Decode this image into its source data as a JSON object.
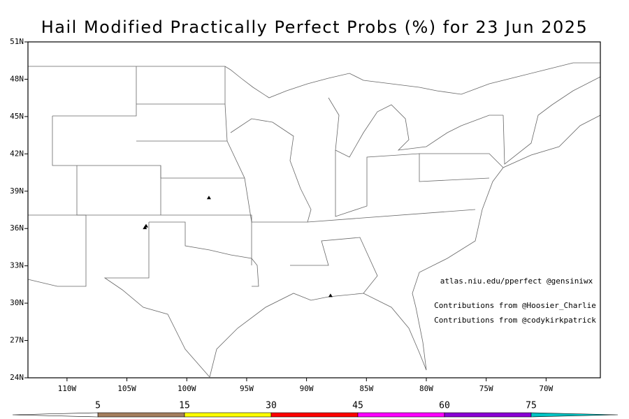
{
  "title": "Hail Modified Practically Perfect Probs (%) for 23 Jun 2025",
  "map": {
    "lonlim": [
      -113.26,
      -65.47
    ],
    "latlim": [
      24,
      51
    ],
    "xticks": [
      {
        "value": -110,
        "label": "110W"
      },
      {
        "value": -105,
        "label": "105W"
      },
      {
        "value": -100,
        "label": "100W"
      },
      {
        "value": -95,
        "label": "95W"
      },
      {
        "value": -90,
        "label": "90W"
      },
      {
        "value": -85,
        "label": "85W"
      },
      {
        "value": -80,
        "label": "80W"
      },
      {
        "value": -75,
        "label": "75W"
      },
      {
        "value": -70,
        "label": "70W"
      }
    ],
    "yticks": [
      {
        "value": 24,
        "label": "24N"
      },
      {
        "value": 27,
        "label": "27N"
      },
      {
        "value": 30,
        "label": "30N"
      },
      {
        "value": 33,
        "label": "33N"
      },
      {
        "value": 36,
        "label": "36N"
      },
      {
        "value": 39,
        "label": "39N"
      },
      {
        "value": 42,
        "label": "42N"
      },
      {
        "value": 45,
        "label": "45N"
      },
      {
        "value": 48,
        "label": "48N"
      },
      {
        "value": 51,
        "label": "51N"
      }
    ],
    "reports": [
      {
        "lon": -98.15,
        "lat": 38.47
      },
      {
        "lon": -103.5,
        "lat": 36.06
      },
      {
        "lon": -103.4,
        "lat": 36.2
      },
      {
        "lon": -88.0,
        "lat": 30.6
      }
    ]
  },
  "annotations": [
    "atlas.niu.edu/pperfect @gensiniwx",
    "Contributions from @Hoosier_Charlie",
    "Contributions from @codykirkpatrick"
  ],
  "colorbar": {
    "levels": [
      5,
      15,
      30,
      45,
      60,
      75
    ],
    "colors": [
      "#ffffff",
      "#a47e5e",
      "#ffff00",
      "#ff0000",
      "#ff00ff",
      "#8a00d4",
      "#00c4c4"
    ]
  }
}
